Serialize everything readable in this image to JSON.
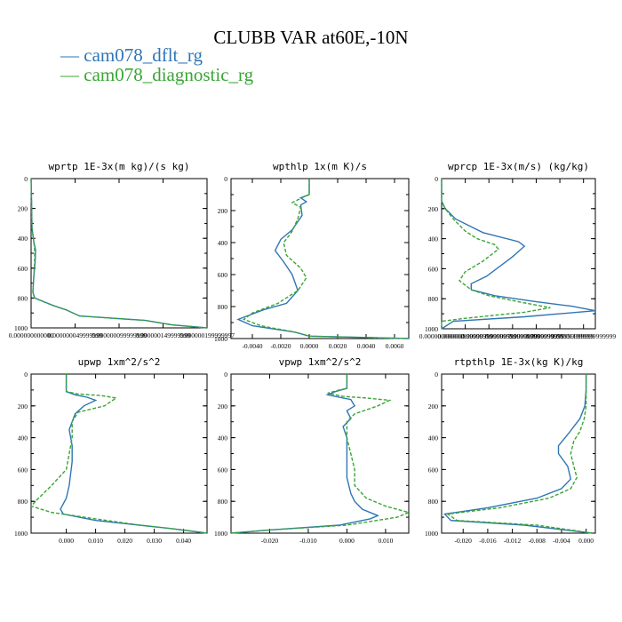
{
  "title": "CLUBB VAR at60E,-10N",
  "legend": [
    {
      "name": "cam078_dflt_rg",
      "color": "#2f76b5"
    },
    {
      "name": "cam078_diagnostic_rg",
      "color": "#3aa535"
    }
  ],
  "chart_data": [
    {
      "type": "line",
      "title": "wprtp  1E-3x(m kg)/(s kg)",
      "xlim": [
        0,
        2e-07
      ],
      "ylim": [
        0,
        1000
      ],
      "y_ticks": [
        "0",
        "200",
        "400",
        "600",
        "800",
        "1000"
      ],
      "x_ticks": [
        "0.000000000000",
        "0.000000049999999",
        "0.000000099999999",
        "0.000000149999999",
        "0.000000199999997"
      ],
      "series": [
        {
          "name": "cam078_dflt_rg",
          "points": [
            [
              0.0,
              0
            ],
            [
              5e-10,
              150
            ],
            [
              1e-09,
              330
            ],
            [
              3e-09,
              420
            ],
            [
              5e-09,
              480
            ],
            [
              4.5e-09,
              560
            ],
            [
              3e-09,
              660
            ],
            [
              2e-09,
              760
            ],
            [
              4e-09,
              800
            ],
            [
              2.5e-08,
              850
            ],
            [
              4e-08,
              880
            ],
            [
              5.5e-08,
              920
            ],
            [
              1.3e-07,
              950
            ],
            [
              1.6e-07,
              980
            ],
            [
              2e-07,
              1000
            ]
          ]
        },
        {
          "name": "cam078_diagnostic_rg",
          "points": [
            [
              0.0,
              0
            ],
            [
              5e-10,
              150
            ],
            [
              1e-09,
              330
            ],
            [
              3e-09,
              420
            ],
            [
              4e-09,
              480
            ],
            [
              4e-09,
              560
            ],
            [
              3e-09,
              660
            ],
            [
              2e-09,
              760
            ],
            [
              4e-09,
              800
            ],
            [
              2.5e-08,
              850
            ],
            [
              4e-08,
              880
            ],
            [
              5.5e-08,
              920
            ],
            [
              1.3e-07,
              950
            ],
            [
              1.6e-07,
              980
            ],
            [
              2e-07,
              1000
            ]
          ]
        }
      ]
    },
    {
      "type": "line",
      "title": "wpthlp  1x(m K)/s",
      "xlim": [
        -0.0055,
        0.007
      ],
      "ylim": [
        0,
        1000
      ],
      "y_ticks": [
        "0",
        "200",
        "400",
        "600",
        "800",
        "1000"
      ],
      "x_ticks": [
        "-0.0040",
        "-0.0020",
        "0.0000",
        "0.0020",
        "0.0040",
        "0.0060"
      ],
      "series": [
        {
          "name": "cam078_dflt_rg",
          "points": [
            [
              0.0,
              0
            ],
            [
              0.0,
              100
            ],
            [
              -0.0006,
              120
            ],
            [
              -0.0002,
              145
            ],
            [
              -0.0006,
              165
            ],
            [
              -0.0005,
              230
            ],
            [
              -0.0012,
              320
            ],
            [
              -0.002,
              380
            ],
            [
              -0.0024,
              450
            ],
            [
              -0.0018,
              520
            ],
            [
              -0.0012,
              600
            ],
            [
              -0.0008,
              700
            ],
            [
              -0.0016,
              780
            ],
            [
              -0.0032,
              820
            ],
            [
              -0.005,
              880
            ],
            [
              -0.004,
              920
            ],
            [
              -0.001,
              960
            ],
            [
              0.0,
              985
            ],
            [
              0.007,
              1000
            ]
          ]
        },
        {
          "name": "cam078_diagnostic_rg",
          "points": [
            [
              0.0,
              0
            ],
            [
              0.0,
              100
            ],
            [
              -0.0004,
              115
            ],
            [
              -0.0012,
              150
            ],
            [
              -0.0006,
              180
            ],
            [
              -0.0008,
              250
            ],
            [
              -0.0012,
              330
            ],
            [
              -0.0018,
              400
            ],
            [
              -0.0016,
              480
            ],
            [
              -0.0006,
              560
            ],
            [
              -0.0002,
              620
            ],
            [
              -0.0008,
              700
            ],
            [
              -0.0022,
              780
            ],
            [
              -0.004,
              840
            ],
            [
              -0.0046,
              880
            ],
            [
              -0.0034,
              920
            ],
            [
              -0.001,
              960
            ],
            [
              0.0,
              985
            ],
            [
              0.007,
              1000
            ]
          ]
        }
      ]
    },
    {
      "type": "line",
      "title": "wprcp  1E-3x(m/s) (kg/kg)",
      "xlim": [
        0,
        1.3e-05
      ],
      "ylim": [
        0,
        1000
      ],
      "y_ticks": [
        "0",
        "200",
        "400",
        "600",
        "800",
        "1000"
      ],
      "x_ticks": [
        "0.000000000000",
        "0.000001999999999",
        "0.000003999999999",
        "0.000005999999999",
        "0.000007999999999",
        "0.0000099999999999999",
        "0.000011999999999999"
      ],
      "series": [
        {
          "name": "cam078_dflt_rg",
          "points": [
            [
              0.0,
              0
            ],
            [
              0.0,
              150
            ],
            [
              3e-07,
              200
            ],
            [
              1.2e-06,
              270
            ],
            [
              3.5e-06,
              360
            ],
            [
              6.5e-06,
              420
            ],
            [
              7e-06,
              450
            ],
            [
              6e-06,
              520
            ],
            [
              5.5e-06,
              550
            ],
            [
              3.8e-06,
              650
            ],
            [
              2.5e-06,
              700
            ],
            [
              2.5e-06,
              740
            ],
            [
              4.5e-06,
              780
            ],
            [
              8e-06,
              820
            ],
            [
              1.1e-05,
              850
            ],
            [
              1.3e-05,
              880
            ],
            [
              7e-06,
              920
            ],
            [
              1e-06,
              950
            ],
            [
              0.0,
              1000
            ]
          ]
        },
        {
          "name": "cam078_diagnostic_rg",
          "points": [
            [
              0.0,
              0
            ],
            [
              0.0,
              150
            ],
            [
              3e-07,
              200
            ],
            [
              1e-06,
              270
            ],
            [
              2e-06,
              350
            ],
            [
              3e-06,
              400
            ],
            [
              4.5e-06,
              440
            ],
            [
              4.8e-06,
              470
            ],
            [
              3.5e-06,
              550
            ],
            [
              2e-06,
              620
            ],
            [
              1.5e-06,
              680
            ],
            [
              2.5e-06,
              740
            ],
            [
              4e-06,
              780
            ],
            [
              6.5e-06,
              820
            ],
            [
              9.2e-06,
              860
            ],
            [
              7e-06,
              890
            ],
            [
              2e-06,
              930
            ],
            [
              0.0,
              950
            ],
            [
              0.0,
              1000
            ]
          ]
        }
      ]
    },
    {
      "type": "line",
      "title": "upwp  1xm^2/s^2",
      "xlim": [
        -0.012,
        0.048
      ],
      "ylim": [
        0,
        1000
      ],
      "y_ticks": [
        "0",
        "200",
        "400",
        "600",
        "800",
        "1000"
      ],
      "x_ticks": [
        "0.000",
        "0.010",
        "0.020",
        "0.030",
        "0.040"
      ],
      "series": [
        {
          "name": "cam078_dflt_rg",
          "points": [
            [
              0.0,
              0
            ],
            [
              0.0,
              110
            ],
            [
              0.003,
              130
            ],
            [
              0.007,
              145
            ],
            [
              0.01,
              165
            ],
            [
              0.006,
              200
            ],
            [
              0.003,
              250
            ],
            [
              0.001,
              350
            ],
            [
              0.002,
              450
            ],
            [
              0.002,
              550
            ],
            [
              0.001,
              700
            ],
            [
              0.0,
              780
            ],
            [
              -0.002,
              850
            ],
            [
              -0.001,
              880
            ],
            [
              0.01,
              920
            ],
            [
              0.025,
              950
            ],
            [
              0.035,
              970
            ],
            [
              0.048,
              1000
            ]
          ]
        },
        {
          "name": "cam078_diagnostic_rg",
          "points": [
            [
              0.0,
              0
            ],
            [
              0.0,
              110
            ],
            [
              0.004,
              125
            ],
            [
              0.012,
              135
            ],
            [
              0.017,
              150
            ],
            [
              0.013,
              200
            ],
            [
              0.004,
              240
            ],
            [
              0.002,
              300
            ],
            [
              0.002,
              400
            ],
            [
              0.001,
              500
            ],
            [
              0.0,
              600
            ],
            [
              -0.005,
              700
            ],
            [
              -0.01,
              790
            ],
            [
              -0.012,
              830
            ],
            [
              -0.005,
              870
            ],
            [
              0.01,
              910
            ],
            [
              0.025,
              950
            ],
            [
              0.04,
              980
            ],
            [
              0.048,
              1000
            ]
          ]
        }
      ]
    },
    {
      "type": "line",
      "title": "vpwp  1xm^2/s^2",
      "xlim": [
        -0.03,
        0.016
      ],
      "ylim": [
        0,
        1000
      ],
      "y_ticks": [
        "0",
        "200",
        "400",
        "600",
        "800",
        "1000"
      ],
      "x_ticks": [
        "-0.020",
        "-0.010",
        "0.000",
        "0.010"
      ],
      "series": [
        {
          "name": "cam078_dflt_rg",
          "points": [
            [
              0.0,
              0
            ],
            [
              0.0,
              90
            ],
            [
              -0.003,
              110
            ],
            [
              -0.005,
              130
            ],
            [
              -0.001,
              150
            ],
            [
              0.001,
              160
            ],
            [
              0.002,
              200
            ],
            [
              0.0,
              230
            ],
            [
              0.001,
              280
            ],
            [
              -0.001,
              330
            ],
            [
              0.0,
              400
            ],
            [
              0.0,
              500
            ],
            [
              0.0,
              650
            ],
            [
              0.001,
              750
            ],
            [
              0.002,
              800
            ],
            [
              0.004,
              850
            ],
            [
              0.008,
              890
            ],
            [
              0.006,
              910
            ],
            [
              -0.002,
              950
            ],
            [
              -0.02,
              980
            ],
            [
              -0.03,
              1000
            ]
          ]
        },
        {
          "name": "cam078_diagnostic_rg",
          "points": [
            [
              0.0,
              0
            ],
            [
              0.0,
              90
            ],
            [
              -0.002,
              100
            ],
            [
              -0.005,
              120
            ],
            [
              -0.001,
              140
            ],
            [
              0.005,
              150
            ],
            [
              0.011,
              165
            ],
            [
              0.008,
              200
            ],
            [
              0.002,
              250
            ],
            [
              0.0,
              300
            ],
            [
              0.0,
              400
            ],
            [
              0.001,
              500
            ],
            [
              0.002,
              600
            ],
            [
              0.002,
              700
            ],
            [
              0.005,
              780
            ],
            [
              0.01,
              830
            ],
            [
              0.016,
              870
            ],
            [
              0.013,
              900
            ],
            [
              0.0,
              950
            ],
            [
              -0.02,
              980
            ],
            [
              -0.03,
              1000
            ]
          ]
        }
      ]
    },
    {
      "type": "line",
      "title": "rtpthlp  1E-3x(kg K)/kg",
      "xlim": [
        -0.0235,
        0.0015
      ],
      "ylim": [
        0,
        1000
      ],
      "y_ticks": [
        "0",
        "200",
        "400",
        "600",
        "800",
        "1000"
      ],
      "x_ticks": [
        "-0.020",
        "-0.016",
        "-0.012",
        "-0.008",
        "-0.004",
        "0.000"
      ],
      "series": [
        {
          "name": "cam078_dflt_rg",
          "points": [
            [
              0.0,
              0
            ],
            [
              0.0,
              100
            ],
            [
              -0.0002,
              200
            ],
            [
              -0.001,
              280
            ],
            [
              -0.003,
              380
            ],
            [
              -0.0045,
              450
            ],
            [
              -0.0045,
              500
            ],
            [
              -0.003,
              580
            ],
            [
              -0.0025,
              660
            ],
            [
              -0.004,
              720
            ],
            [
              -0.008,
              780
            ],
            [
              -0.016,
              840
            ],
            [
              -0.023,
              880
            ],
            [
              -0.022,
              920
            ],
            [
              -0.01,
              950
            ],
            [
              0.001,
              1000
            ]
          ]
        },
        {
          "name": "cam078_diagnostic_rg",
          "points": [
            [
              0.0,
              0
            ],
            [
              0.0,
              100
            ],
            [
              0.0,
              200
            ],
            [
              -0.0003,
              280
            ],
            [
              -0.001,
              360
            ],
            [
              -0.002,
              420
            ],
            [
              -0.0025,
              500
            ],
            [
              -0.002,
              580
            ],
            [
              -0.0015,
              650
            ],
            [
              -0.0025,
              720
            ],
            [
              -0.006,
              780
            ],
            [
              -0.014,
              840
            ],
            [
              -0.0225,
              880
            ],
            [
              -0.021,
              920
            ],
            [
              -0.008,
              950
            ],
            [
              0.001,
              1000
            ]
          ]
        }
      ]
    }
  ]
}
